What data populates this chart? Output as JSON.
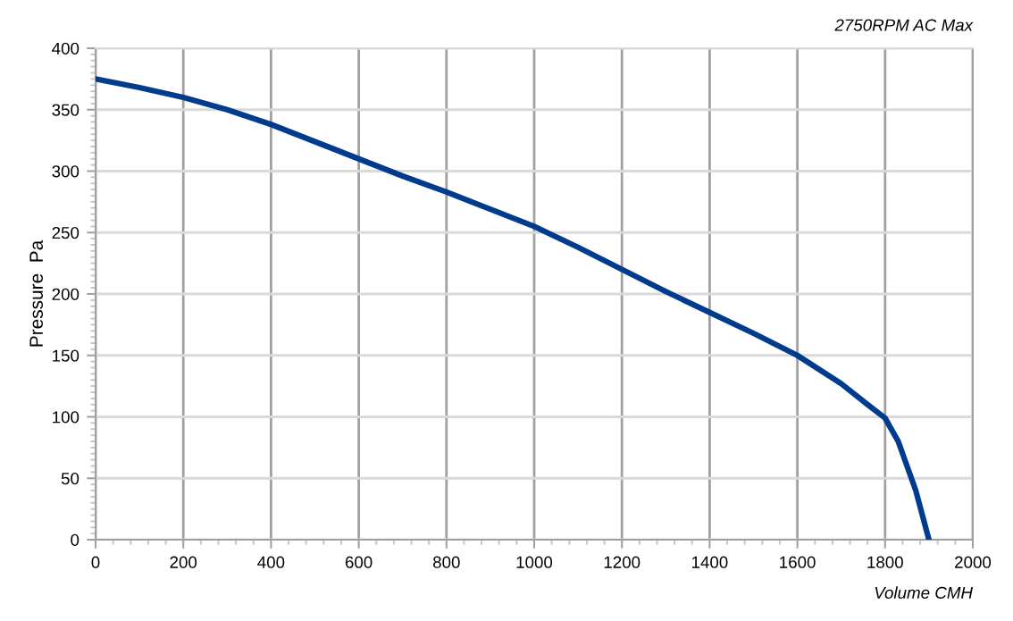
{
  "chart_data": {
    "type": "line",
    "title": "2750RPM AC Max",
    "xlabel": "Volume CMH",
    "ylabel": "Pressure  Pa",
    "series": [
      {
        "color": "#003b8e",
        "x": [
          0,
          100,
          200,
          300,
          400,
          500,
          600,
          700,
          800,
          900,
          1000,
          1100,
          1200,
          1300,
          1400,
          1500,
          1600,
          1700,
          1760,
          1800,
          1830,
          1850,
          1870,
          1885,
          1900
        ],
        "values": [
          375,
          368,
          360,
          350,
          338,
          324,
          310,
          296,
          283,
          269,
          255,
          238,
          220,
          202,
          185,
          168,
          150,
          127,
          110,
          99,
          80,
          60,
          40,
          20,
          0
        ]
      }
    ],
    "xlim": [
      0,
      2000
    ],
    "xticks": [
      0,
      200,
      400,
      600,
      800,
      1000,
      1200,
      1400,
      1600,
      1800,
      2000
    ],
    "ylim": [
      0,
      400
    ],
    "yticks": [
      0,
      50,
      100,
      150,
      200,
      250,
      300,
      350,
      400
    ],
    "grid": true,
    "marker": "none",
    "line_style": "solid",
    "legend": false
  }
}
